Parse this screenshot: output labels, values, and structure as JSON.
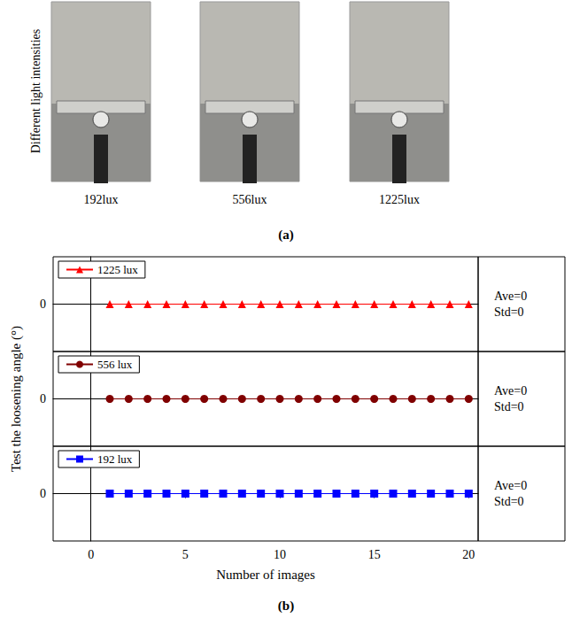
{
  "figure": {
    "panel_a": {
      "row_label": "Different light intensities",
      "images": [
        {
          "label": "192lux"
        },
        {
          "label": "556lux"
        },
        {
          "label": "1225lux"
        }
      ],
      "caption": "(a)"
    },
    "panel_b": {
      "ylabel": "Test the loosening angle (°)",
      "caption": "(b)"
    }
  },
  "chart_data": [
    {
      "type": "line",
      "xlim": [
        -2,
        20.5
      ],
      "xticks": [
        0,
        5,
        10,
        15,
        20
      ],
      "ylim": [
        -1,
        1
      ],
      "yticks": [
        0
      ],
      "tick_labels": "y",
      "legend": "upper left",
      "annotations": [
        "Ave=0",
        "Std=0"
      ],
      "series": [
        {
          "name": "1225 lux",
          "color": "#ff0000",
          "marker": "triangle",
          "line_style": "solid",
          "x": [
            1,
            2,
            3,
            4,
            5,
            6,
            7,
            8,
            9,
            10,
            11,
            12,
            13,
            14,
            15,
            16,
            17,
            18,
            19,
            20
          ],
          "values": [
            0,
            0,
            0,
            0,
            0,
            0,
            0,
            0,
            0,
            0,
            0,
            0,
            0,
            0,
            0,
            0,
            0,
            0,
            0,
            0
          ]
        }
      ]
    },
    {
      "type": "line",
      "xlim": [
        -2,
        20.5
      ],
      "xticks": [
        0,
        5,
        10,
        15,
        20
      ],
      "ylim": [
        -1,
        1
      ],
      "yticks": [
        0
      ],
      "tick_labels": "y",
      "legend": "upper left",
      "annotations": [
        "Ave=0",
        "Std=0"
      ],
      "series": [
        {
          "name": "556 lux",
          "color": "#800000",
          "marker": "circle",
          "line_style": "solid",
          "x": [
            1,
            2,
            3,
            4,
            5,
            6,
            7,
            8,
            9,
            10,
            11,
            12,
            13,
            14,
            15,
            16,
            17,
            18,
            19,
            20
          ],
          "values": [
            0,
            0,
            0,
            0,
            0,
            0,
            0,
            0,
            0,
            0,
            0,
            0,
            0,
            0,
            0,
            0,
            0,
            0,
            0,
            0
          ]
        }
      ]
    },
    {
      "type": "line",
      "xlim": [
        -2,
        20.5
      ],
      "xticks": [
        0,
        5,
        10,
        15,
        20
      ],
      "ylim": [
        -1,
        1
      ],
      "yticks": [
        0
      ],
      "tick_labels": true,
      "legend": "upper left",
      "annotations": [
        "Ave=0",
        "Std=0"
      ],
      "xlabel": "Number of images",
      "series": [
        {
          "name": "192 lux",
          "color": "#0000ff",
          "marker": "square",
          "line_style": "solid",
          "x": [
            1,
            2,
            3,
            4,
            5,
            6,
            7,
            8,
            9,
            10,
            11,
            12,
            13,
            14,
            15,
            16,
            17,
            18,
            19,
            20
          ],
          "values": [
            0,
            0,
            0,
            0,
            0,
            0,
            0,
            0,
            0,
            0,
            0,
            0,
            0,
            0,
            0,
            0,
            0,
            0,
            0,
            0
          ]
        }
      ]
    }
  ]
}
